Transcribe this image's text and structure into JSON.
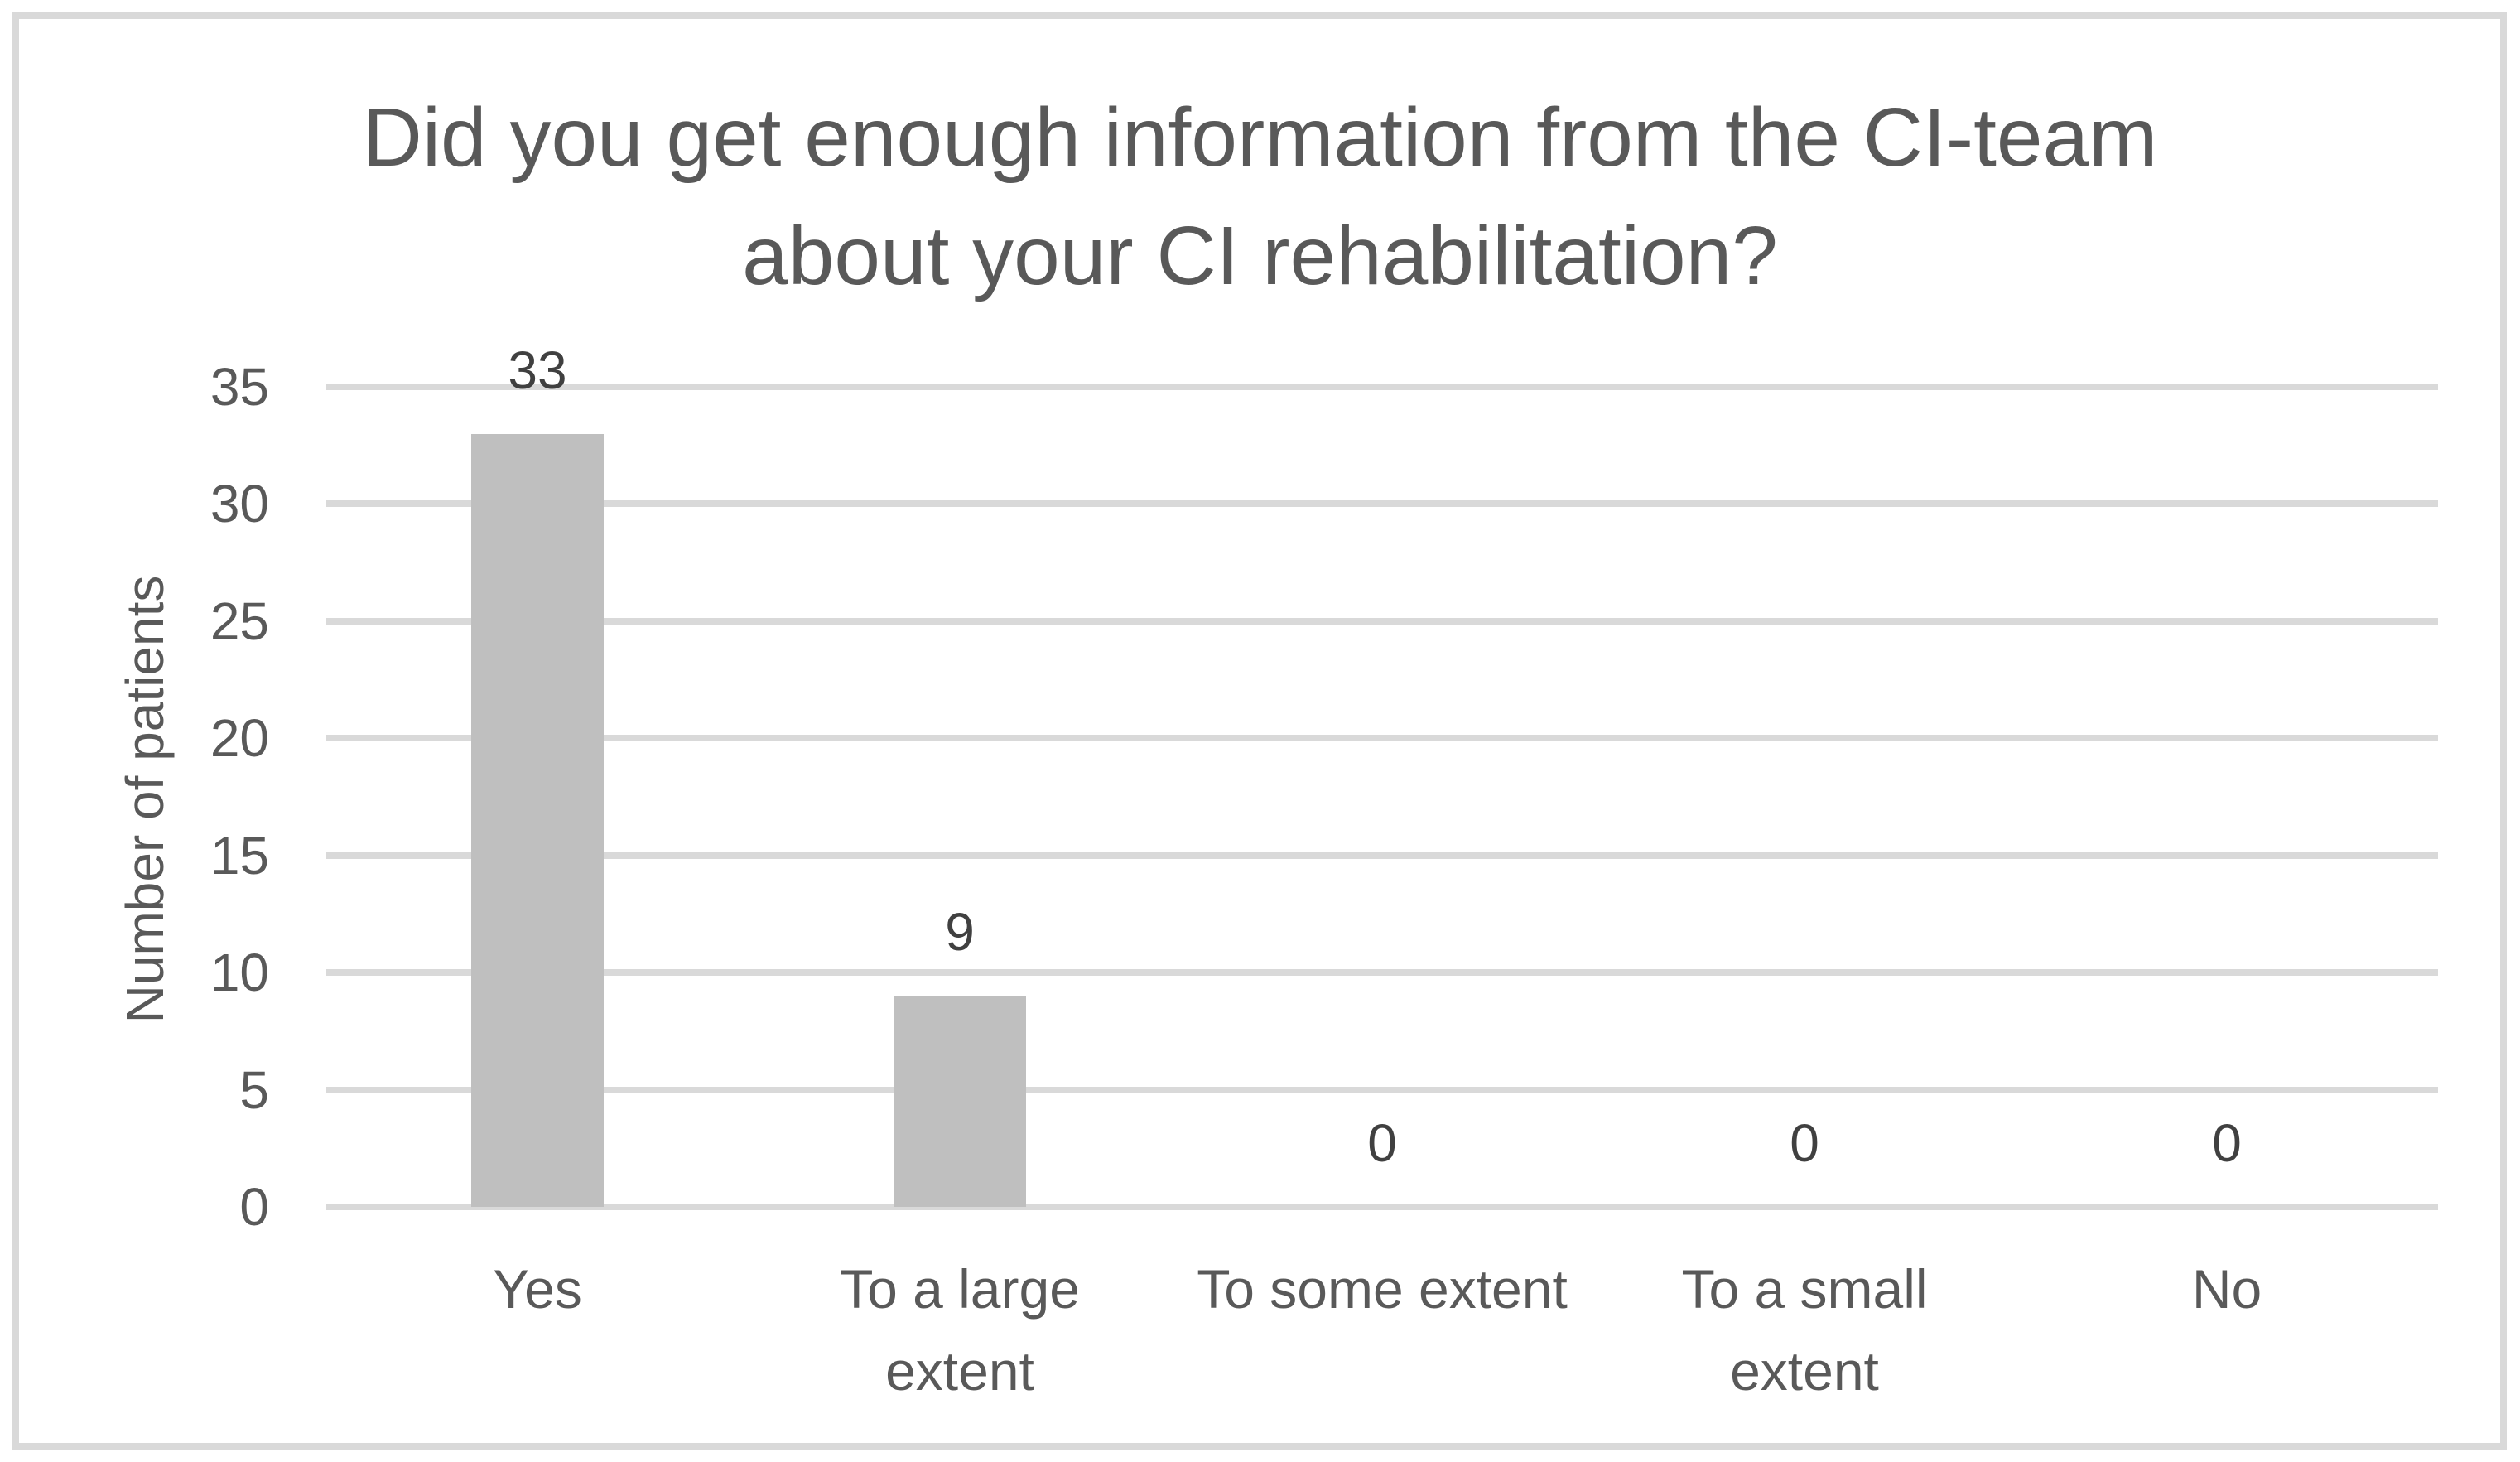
{
  "chart_data": {
    "type": "bar",
    "title": "Did you get enough information from the CI-team\nabout your CI rehabilitation?",
    "xlabel": "",
    "ylabel": "Number of patients",
    "categories": [
      "Yes",
      "To a large extent",
      "To some extent",
      "To a small extent",
      "No"
    ],
    "category_lines": [
      [
        "Yes"
      ],
      [
        "To a large",
        "extent"
      ],
      [
        "To some extent"
      ],
      [
        "To a small",
        "extent"
      ],
      [
        "No"
      ]
    ],
    "values": [
      33,
      9,
      0,
      0,
      0
    ],
    "value_labels": [
      "33",
      "9",
      "0",
      "0",
      "0"
    ],
    "ylim": [
      0,
      35
    ],
    "yticks": [
      0,
      5,
      10,
      15,
      20,
      25,
      30,
      35
    ],
    "grid": true,
    "legend": false,
    "colors": {
      "bar": "#bfbfbf",
      "grid": "#d9d9d9",
      "text": "#595959",
      "value_label": "#404040",
      "background": "#ffffff"
    }
  }
}
